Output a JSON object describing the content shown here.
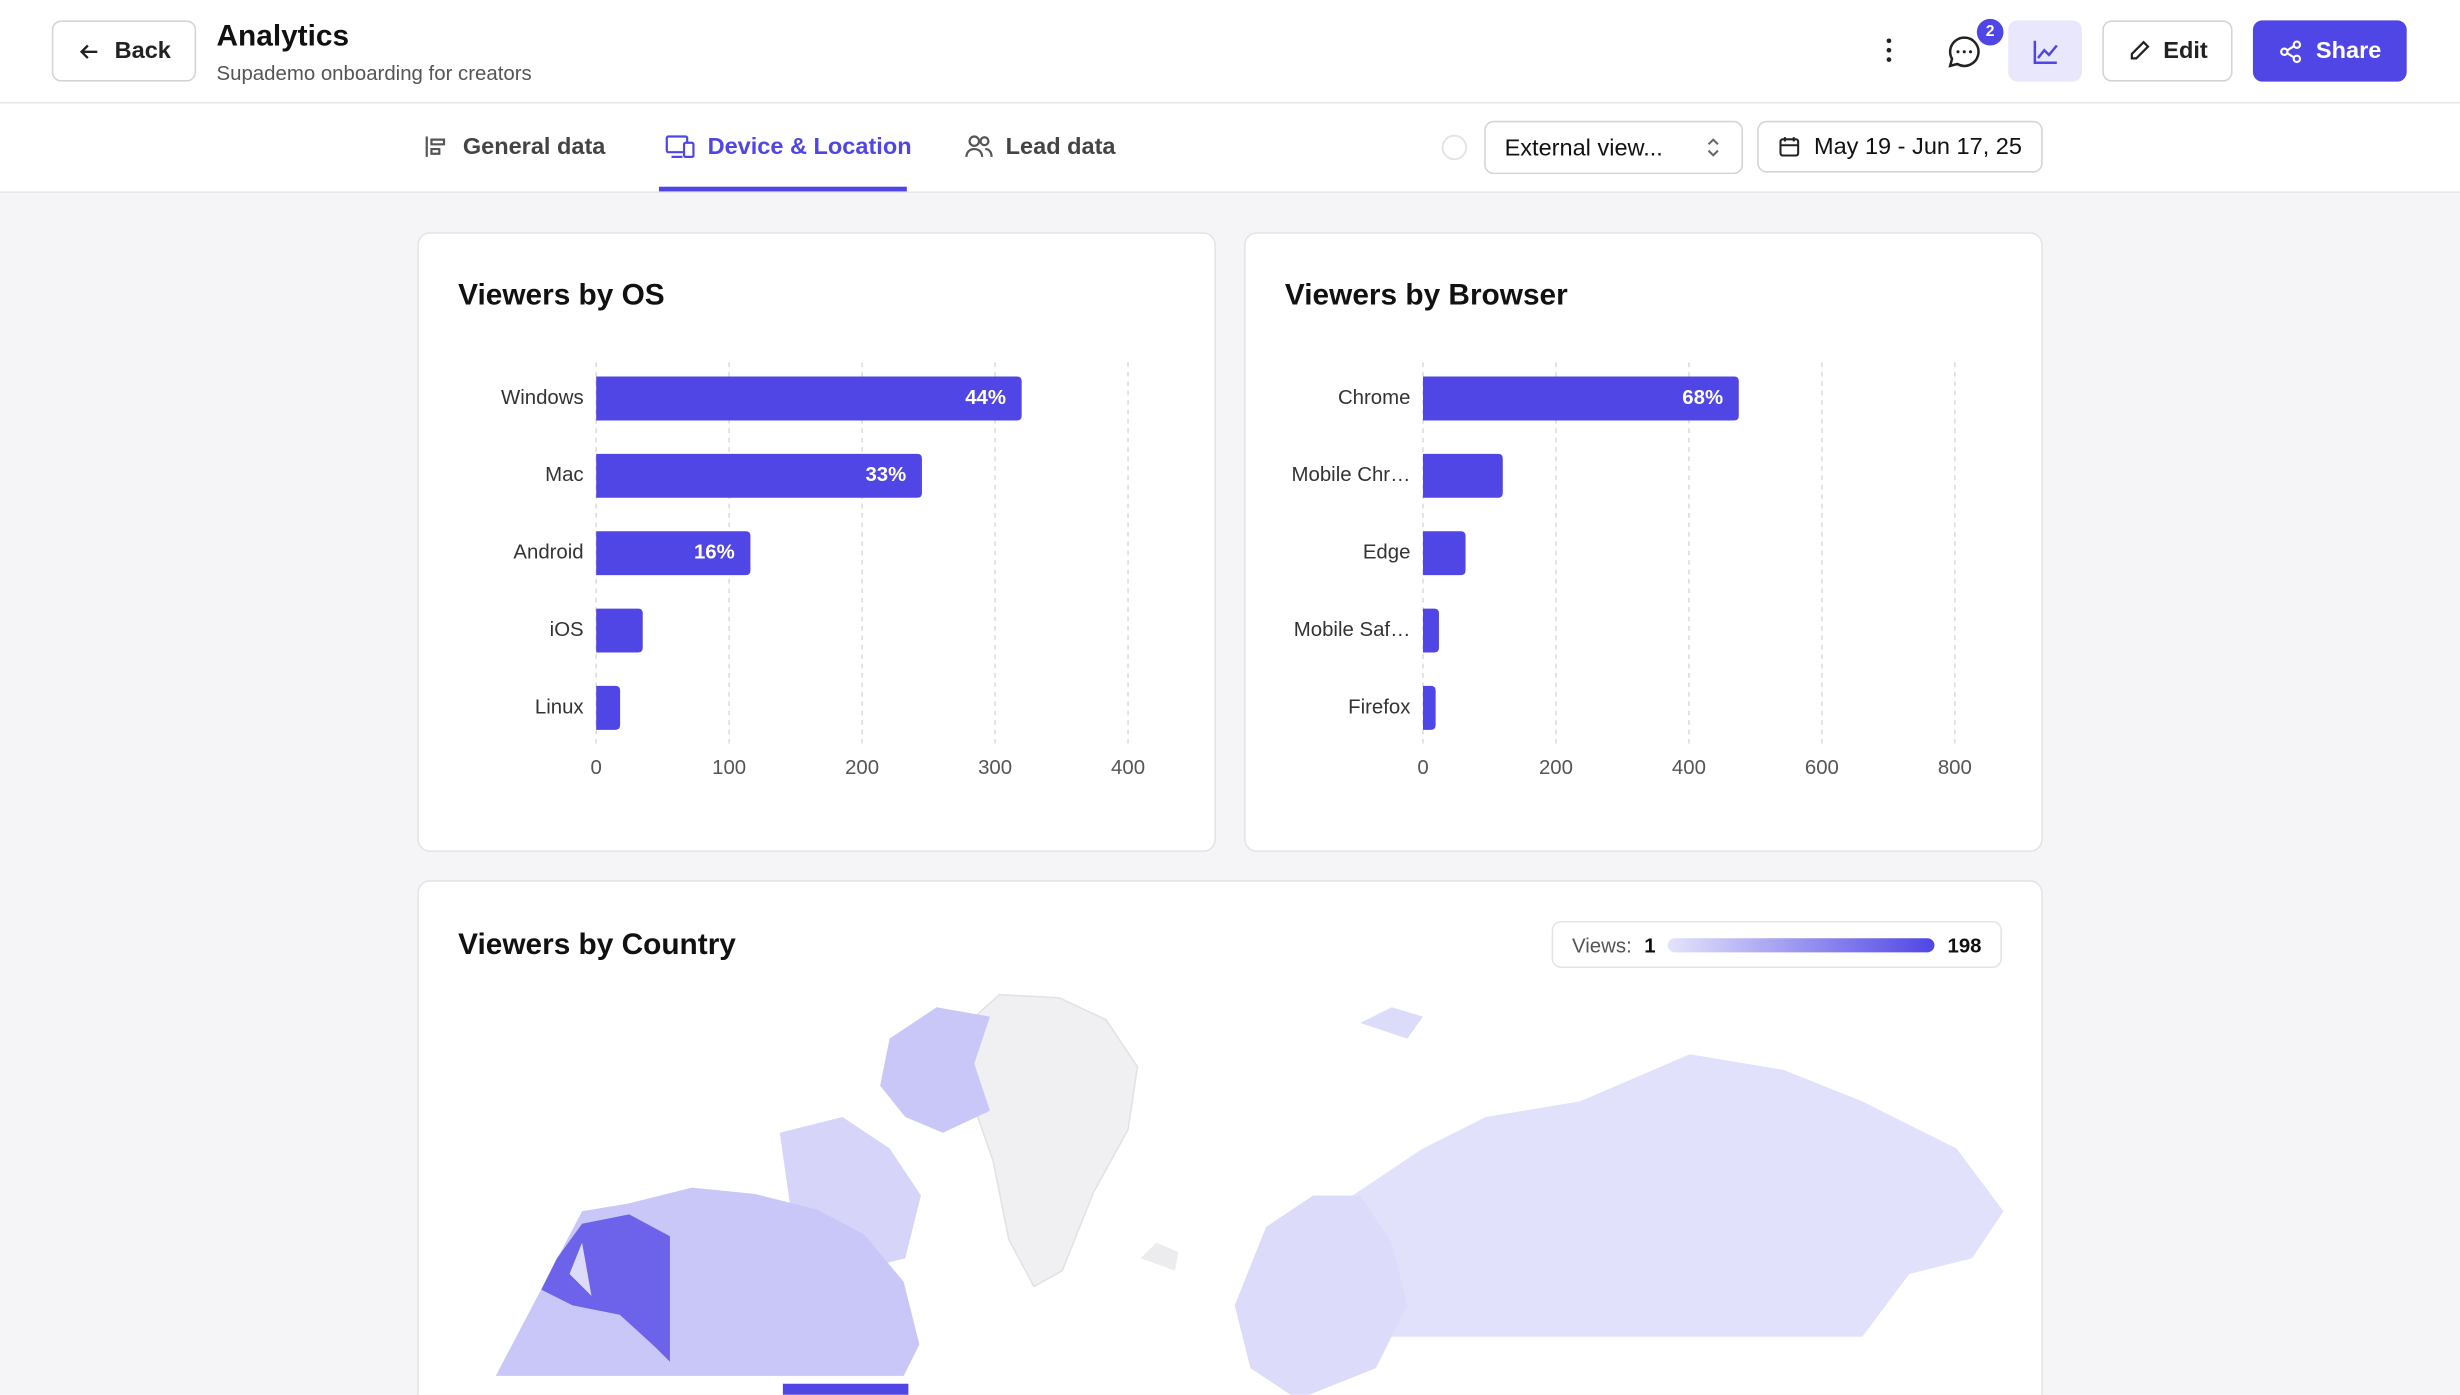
{
  "header": {
    "back": "Back",
    "title": "Analytics",
    "subtitle": "Supademo onboarding for creators",
    "notifications": 2,
    "edit": "Edit",
    "share": "Share"
  },
  "tabs": [
    "General data",
    "Device & Location",
    "Lead data"
  ],
  "filters": {
    "view": "External view...",
    "date_range": "May 19 - Jun 17, 25"
  },
  "chart_data": [
    {
      "type": "hbar",
      "title": "Viewers by OS",
      "categories": [
        "Windows",
        "Mac",
        "Android",
        "iOS",
        "Linux"
      ],
      "values": [
        320,
        245,
        116,
        35,
        18
      ],
      "value_labels": [
        "44%",
        "33%",
        "16%",
        null,
        null
      ],
      "color": "#4f46e5",
      "xlim": [
        0,
        400
      ],
      "xticks": [
        0,
        100,
        200,
        300,
        400
      ],
      "grid": true
    },
    {
      "type": "hbar",
      "title": "Viewers by Browser",
      "categories": [
        "Chrome",
        "Mobile Chr…",
        "Edge",
        "Mobile Saf…",
        "Firefox"
      ],
      "values": [
        475,
        120,
        64,
        24,
        19
      ],
      "value_labels": [
        "68%",
        null,
        null,
        null,
        null
      ],
      "color": "#4f46e5",
      "xlim": [
        0,
        800
      ],
      "xticks": [
        0,
        200,
        400,
        600,
        800
      ],
      "grid": true
    }
  ],
  "map": {
    "title": "Viewers by Country",
    "legend_label": "Views:",
    "min": 1,
    "max": 198
  }
}
